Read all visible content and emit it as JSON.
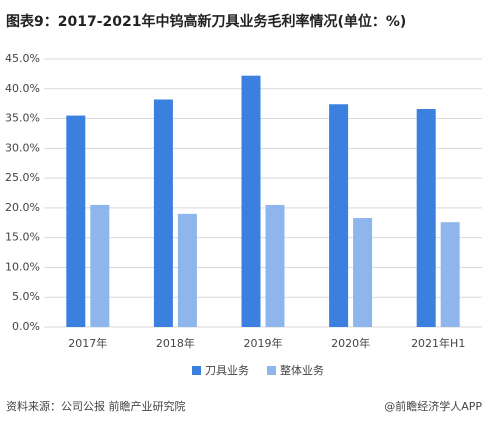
{
  "chart_data": {
    "type": "bar",
    "title": "图表9：2017-2021年中钨高新刀具业务毛利率情况(单位：%)",
    "categories": [
      "2017年",
      "2018年",
      "2019年",
      "2020年",
      "2021年H1"
    ],
    "series": [
      {
        "name": "刀具业务",
        "color": "#3b80de",
        "values": [
          35.5,
          38.2,
          42.2,
          37.4,
          36.6
        ]
      },
      {
        "name": "整体业务",
        "color": "#8fb6ec",
        "values": [
          20.5,
          19.0,
          20.5,
          18.3,
          17.6
        ]
      }
    ],
    "ylim": [
      0,
      45
    ],
    "yticks": [
      {
        "value": 0,
        "label": "0.0%"
      },
      {
        "value": 5,
        "label": "5.0%"
      },
      {
        "value": 10,
        "label": "10.0%"
      },
      {
        "value": 15,
        "label": "15.0%"
      },
      {
        "value": 20,
        "label": "20.0%"
      },
      {
        "value": 25,
        "label": "25.0%"
      },
      {
        "value": 30,
        "label": "30.0%"
      },
      {
        "value": 35,
        "label": "35.0%"
      },
      {
        "value": 40,
        "label": "40.0%"
      },
      {
        "value": 45,
        "label": "45.0%"
      }
    ],
    "grid": true,
    "legend": "bottom",
    "source": "资料来源：公司公报 前瞻产业研究院",
    "credit": "@前瞻经济学人APP"
  }
}
